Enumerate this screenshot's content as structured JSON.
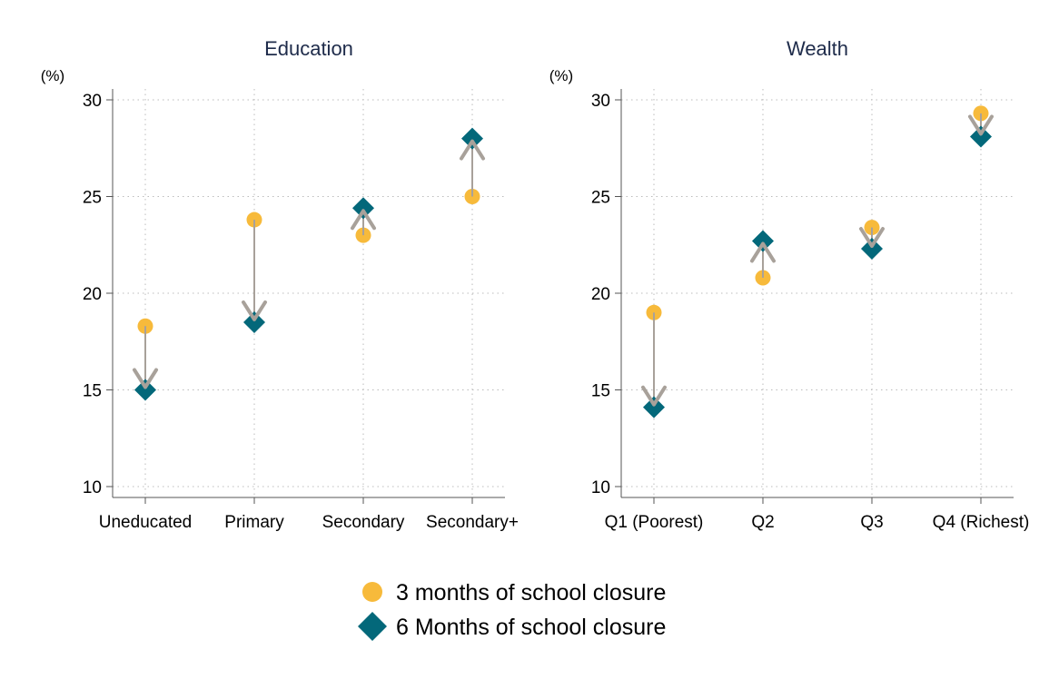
{
  "colors": {
    "series3": "#F7BA3B",
    "series6": "#03687A",
    "arrow": "#A8A19A",
    "axis": "#555555",
    "grid": "#BBBBBB",
    "title": "#1E2B4A"
  },
  "chart_data": [
    {
      "type": "scatter",
      "title": "Education",
      "ylabel": "(%)",
      "ylim": [
        10,
        30
      ],
      "yticks": [
        10,
        15,
        20,
        25,
        30
      ],
      "categories": [
        "Uneducated",
        "Primary",
        "Secondary",
        "Secondary+"
      ],
      "series": [
        {
          "name": "3 months of school closure",
          "values": [
            18.3,
            23.8,
            23.0,
            25.0
          ]
        },
        {
          "name": "6 Months of school closure",
          "values": [
            15.0,
            18.5,
            24.4,
            28.0
          ]
        }
      ],
      "grid": true
    },
    {
      "type": "scatter",
      "title": "Wealth",
      "ylabel": "(%)",
      "ylim": [
        10,
        30
      ],
      "yticks": [
        10,
        15,
        20,
        25,
        30
      ],
      "categories": [
        "Q1 (Poorest)",
        "Q2",
        "Q3",
        "Q4 (Richest)"
      ],
      "series": [
        {
          "name": "3 months of school closure",
          "values": [
            19.0,
            20.8,
            23.4,
            29.3
          ]
        },
        {
          "name": "6 Months of school closure",
          "values": [
            14.1,
            22.7,
            22.3,
            28.1
          ]
        }
      ],
      "grid": true
    }
  ],
  "legend": {
    "placement": "bottom-center",
    "items": [
      {
        "label": "3 months of school closure",
        "marker": "circle"
      },
      {
        "label": "6 Months of school closure",
        "marker": "diamond"
      }
    ]
  }
}
